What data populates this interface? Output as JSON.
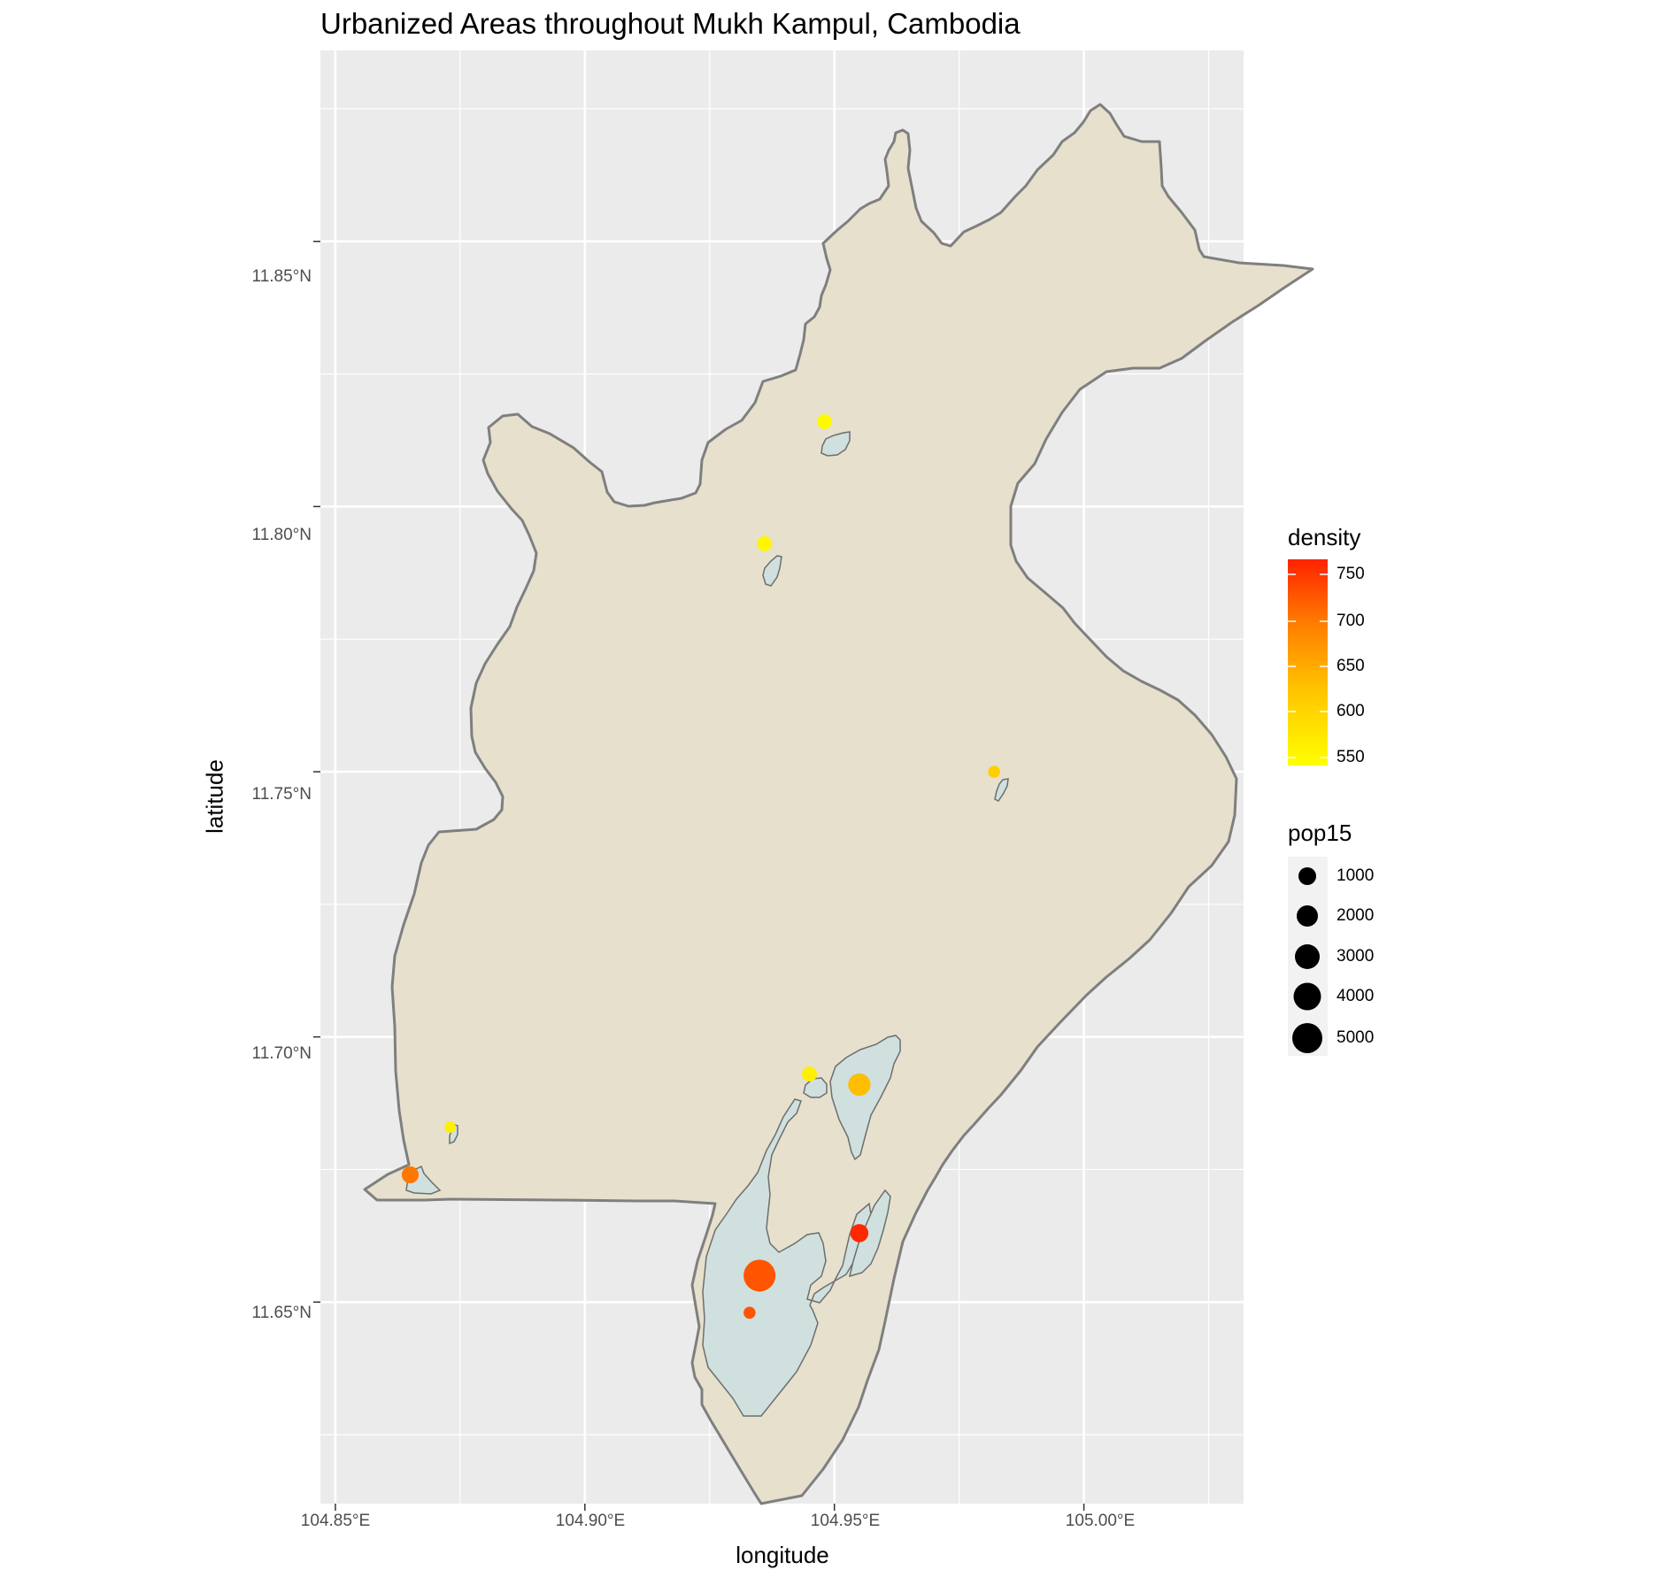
{
  "title": "Urbanized Areas throughout Mukh Kampul, Cambodia",
  "xlabel": "longitude",
  "ylabel": "latitude",
  "x_ticks": [
    "104.85°E",
    "104.90°E",
    "104.95°E",
    "105.00°E"
  ],
  "y_ticks": [
    "11.65°N",
    "11.70°N",
    "11.75°N",
    "11.80°N",
    "11.85°N"
  ],
  "legend_density": {
    "title": "density",
    "labels": [
      "750",
      "700",
      "650",
      "600",
      "550"
    ]
  },
  "legend_pop15": {
    "title": "pop15",
    "labels": [
      "1000",
      "2000",
      "3000",
      "4000",
      "5000"
    ]
  },
  "colors": {
    "panel_bg": "#ebebeb",
    "grid": "#ffffff",
    "district_fill": "#e6e0cd",
    "district_stroke": "#7f7f7f",
    "urban_fill": "#cfe0df",
    "density_high": "#ff2200",
    "density_mid": "#ffa500",
    "density_low": "#ffff00"
  },
  "chart_data": {
    "type": "scatter",
    "xlim": [
      104.847,
      105.032
    ],
    "ylim": [
      11.612,
      11.886
    ],
    "x_ticks": [
      104.85,
      104.9,
      104.95,
      105.0
    ],
    "y_ticks": [
      11.65,
      11.7,
      11.75,
      11.8,
      11.85
    ],
    "grid": true,
    "legend_position": "right",
    "points": [
      {
        "lon": 104.948,
        "lat": 11.816,
        "density": 548,
        "pop15": 500
      },
      {
        "lon": 104.936,
        "lat": 11.793,
        "density": 551,
        "pop15": 500
      },
      {
        "lon": 104.982,
        "lat": 11.75,
        "density": 600,
        "pop15": 200
      },
      {
        "lon": 104.945,
        "lat": 11.693,
        "density": 560,
        "pop15": 500
      },
      {
        "lon": 104.955,
        "lat": 11.691,
        "density": 620,
        "pop15": 1900
      },
      {
        "lon": 104.873,
        "lat": 11.683,
        "density": 560,
        "pop15": 150
      },
      {
        "lon": 104.865,
        "lat": 11.674,
        "density": 690,
        "pop15": 800
      },
      {
        "lon": 104.955,
        "lat": 11.663,
        "density": 760,
        "pop15": 1000
      },
      {
        "lon": 104.935,
        "lat": 11.655,
        "density": 720,
        "pop15": 5000
      },
      {
        "lon": 104.933,
        "lat": 11.648,
        "density": 720,
        "pop15": 200
      }
    ]
  }
}
